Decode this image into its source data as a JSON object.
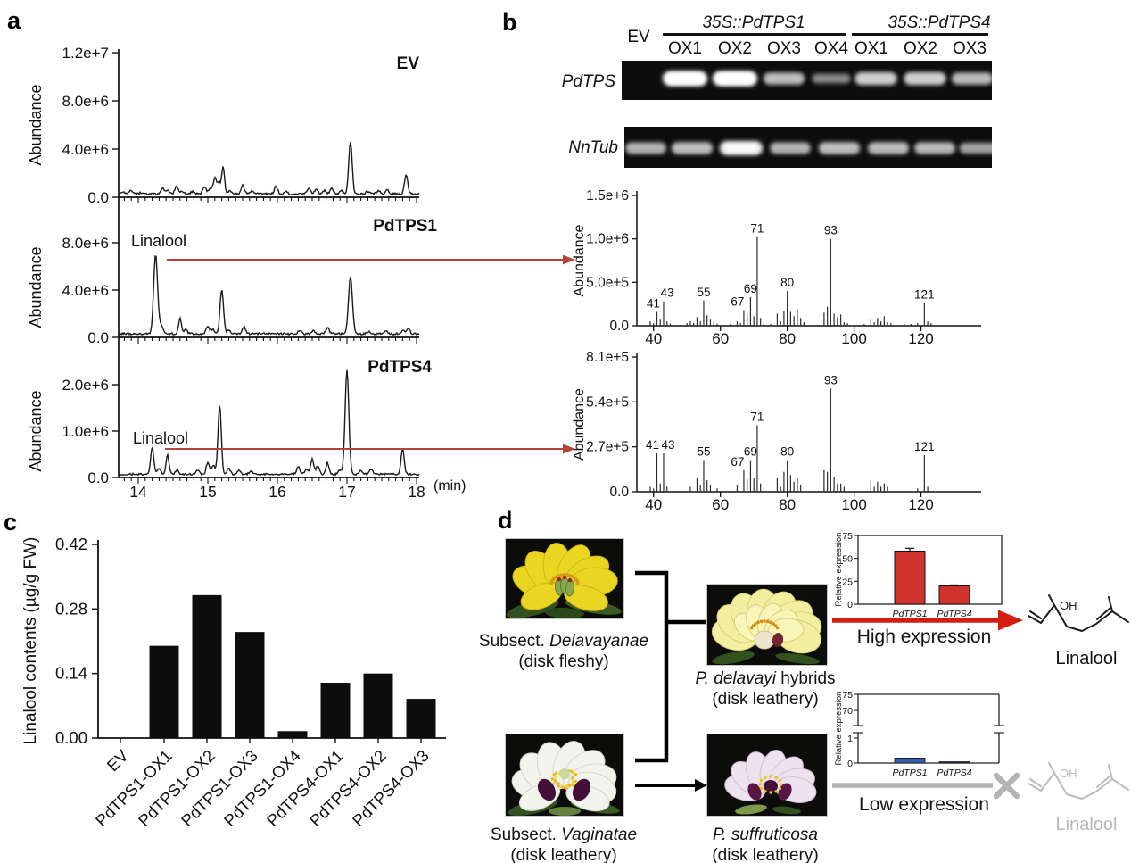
{
  "figure": {
    "panel_labels": {
      "a": "a",
      "b": "b",
      "c": "c",
      "d": "d"
    }
  },
  "colors": {
    "accent_red": "#d21d10",
    "muted_red": "#b5443a",
    "gray": "#b4b4b4",
    "bar_red": "#cf332a",
    "bar_blue": "#3a5fa8",
    "ink": "#111111"
  },
  "panel_b": {
    "ev": "EV",
    "groups": [
      {
        "label": "35S::PdTPS1",
        "lanes": [
          "OX1",
          "OX2",
          "OX3",
          "OX4"
        ]
      },
      {
        "label": "35S::PdTPS4",
        "lanes": [
          "OX1",
          "OX2",
          "OX3"
        ]
      }
    ],
    "row_labels": [
      "PdTPS",
      "NnTub"
    ]
  },
  "charts": {
    "chromatograms": {
      "ylabel": "Abundance",
      "xlabel": "(min)",
      "xticks": [
        "14",
        "15",
        "16",
        "17",
        "18"
      ],
      "plots": [
        {
          "title": "EV",
          "yticks": [
            [
              0,
              "0.0"
            ],
            [
              4,
              "4.0e+6"
            ],
            [
              8,
              "8.0e+6"
            ],
            [
              12,
              "1.2e+7"
            ]
          ],
          "peaks": [
            [
              13.78,
              0.2
            ],
            [
              13.9,
              0.28
            ],
            [
              14.05,
              0.12
            ],
            [
              14.35,
              0.5
            ],
            [
              14.42,
              0.28
            ],
            [
              14.55,
              0.62
            ],
            [
              14.63,
              0.25
            ],
            [
              14.78,
              0.2
            ],
            [
              14.95,
              0.6
            ],
            [
              15.03,
              0.45
            ],
            [
              15.1,
              1.3
            ],
            [
              15.16,
              1.0
            ],
            [
              15.22,
              2.3,
              0.028
            ],
            [
              15.32,
              0.25
            ],
            [
              15.5,
              0.72
            ],
            [
              15.63,
              0.25
            ],
            [
              15.98,
              0.62
            ],
            [
              16.12,
              0.2
            ],
            [
              16.45,
              0.5
            ],
            [
              16.56,
              0.42
            ],
            [
              16.68,
              0.28
            ],
            [
              16.78,
              0.45
            ],
            [
              16.92,
              0.25
            ],
            [
              17.05,
              4.3,
              0.035
            ],
            [
              17.3,
              0.22
            ],
            [
              17.45,
              0.28
            ],
            [
              17.58,
              0.3
            ],
            [
              17.85,
              1.55,
              0.033
            ]
          ]
        },
        {
          "title": "PdTPS1",
          "peak_label": "Linalool",
          "yticks": [
            [
              0,
              "0.0"
            ],
            [
              4,
              "4.0e+6"
            ],
            [
              8,
              "8.0e+6"
            ]
          ],
          "peaks": [
            [
              14.25,
              6.7,
              0.04
            ],
            [
              14.33,
              0.7
            ],
            [
              14.6,
              1.3,
              0.03
            ],
            [
              14.68,
              0.4
            ],
            [
              15.0,
              0.65
            ],
            [
              15.07,
              0.4
            ],
            [
              15.2,
              3.7,
              0.035
            ],
            [
              15.3,
              0.3
            ],
            [
              15.52,
              0.55
            ],
            [
              16.32,
              0.3
            ],
            [
              16.52,
              0.28
            ],
            [
              16.72,
              0.5
            ],
            [
              17.05,
              4.8,
              0.04
            ],
            [
              17.32,
              0.18
            ],
            [
              17.56,
              0.22
            ],
            [
              17.8,
              0.28
            ],
            [
              17.88,
              0.5,
              0.03
            ]
          ]
        },
        {
          "title": "PdTPS4",
          "peak_label": "Linalool",
          "yticks": [
            [
              0,
              "0.0"
            ],
            [
              1,
              "1.0e+6"
            ],
            [
              2,
              "2.0e+6"
            ]
          ],
          "peaks": [
            [
              14.2,
              0.58,
              0.032
            ],
            [
              14.3,
              0.12
            ],
            [
              14.42,
              0.42,
              0.03
            ],
            [
              14.56,
              0.1
            ],
            [
              14.85,
              0.1
            ],
            [
              15.0,
              0.26
            ],
            [
              15.08,
              0.18
            ],
            [
              15.17,
              1.5,
              0.033
            ],
            [
              15.3,
              0.12
            ],
            [
              15.45,
              0.1
            ],
            [
              15.62,
              0.07
            ],
            [
              16.3,
              0.16
            ],
            [
              16.42,
              0.1
            ],
            [
              16.5,
              0.33
            ],
            [
              16.58,
              0.18
            ],
            [
              16.72,
              0.24
            ],
            [
              16.9,
              0.09
            ],
            [
              17.0,
              2.25,
              0.038
            ],
            [
              17.2,
              0.09
            ],
            [
              17.35,
              0.11
            ],
            [
              17.8,
              0.55,
              0.032
            ]
          ]
        }
      ]
    },
    "spectrum1": {
      "ylabel": "Abundance",
      "ymax": 15,
      "yticks": [
        [
          0,
          "0.0"
        ],
        [
          5,
          "5.0e+5"
        ],
        [
          10,
          "1.0e+6"
        ],
        [
          15,
          "1.5e+6"
        ]
      ],
      "xticks": [
        40,
        60,
        80,
        100,
        120
      ],
      "peaks": [
        [
          39,
          0.5
        ],
        [
          40,
          0.3
        ],
        [
          41,
          1.6
        ],
        [
          42,
          0.7
        ],
        [
          43,
          2.8
        ],
        [
          44,
          0.5
        ],
        [
          45,
          0.25
        ],
        [
          50,
          0.3
        ],
        [
          51,
          0.5
        ],
        [
          52,
          0.3
        ],
        [
          53,
          1.0
        ],
        [
          54,
          0.5
        ],
        [
          55,
          2.9
        ],
        [
          56,
          1.2
        ],
        [
          57,
          0.7
        ],
        [
          58,
          0.4
        ],
        [
          59,
          0.25
        ],
        [
          63,
          0.2
        ],
        [
          65,
          0.5
        ],
        [
          66,
          0.3
        ],
        [
          67,
          1.8
        ],
        [
          68,
          1.4
        ],
        [
          69,
          3.3
        ],
        [
          70,
          1.1
        ],
        [
          71,
          10.2
        ],
        [
          72,
          0.9
        ],
        [
          73,
          0.3
        ],
        [
          75,
          0.2
        ],
        [
          77,
          1.4
        ],
        [
          78,
          0.5
        ],
        [
          79,
          1.7
        ],
        [
          80,
          4.0
        ],
        [
          81,
          1.6
        ],
        [
          82,
          1.1
        ],
        [
          83,
          1.9
        ],
        [
          84,
          0.9
        ],
        [
          85,
          0.4
        ],
        [
          91,
          1.5
        ],
        [
          92,
          2.2
        ],
        [
          93,
          10.0
        ],
        [
          94,
          1.4
        ],
        [
          95,
          1.0
        ],
        [
          96,
          1.3
        ],
        [
          97,
          0.4
        ],
        [
          98,
          0.3
        ],
        [
          103,
          0.2
        ],
        [
          105,
          0.7
        ],
        [
          106,
          0.4
        ],
        [
          107,
          0.9
        ],
        [
          108,
          0.5
        ],
        [
          109,
          1.1
        ],
        [
          110,
          0.4
        ],
        [
          111,
          0.3
        ],
        [
          115,
          0.2
        ],
        [
          117,
          0.2
        ],
        [
          119,
          0.3
        ],
        [
          121,
          2.6
        ],
        [
          122,
          0.5
        ],
        [
          123,
          0.3
        ]
      ],
      "labels": [
        [
          41,
          -4
        ],
        [
          43,
          4
        ],
        [
          55,
          0
        ],
        [
          67,
          -7
        ],
        [
          69,
          0
        ],
        [
          71,
          0
        ],
        [
          80,
          0
        ],
        [
          93,
          0
        ],
        [
          121,
          0
        ]
      ]
    },
    "spectrum2": {
      "ylabel": "Abundance",
      "ymax": 8.1,
      "yticks": [
        [
          0,
          "0.0"
        ],
        [
          2.7,
          "2.7e+5"
        ],
        [
          5.4,
          "5.4e+5"
        ],
        [
          8.1,
          "8.1e+5"
        ]
      ],
      "xticks": [
        40,
        60,
        80,
        100,
        120
      ],
      "peaks": [
        [
          39,
          0.3
        ],
        [
          40,
          0.2
        ],
        [
          41,
          2.3
        ],
        [
          42,
          0.5
        ],
        [
          43,
          2.3
        ],
        [
          44,
          0.3
        ],
        [
          51,
          0.3
        ],
        [
          53,
          0.8
        ],
        [
          54,
          0.4
        ],
        [
          55,
          1.9
        ],
        [
          56,
          0.7
        ],
        [
          57,
          0.4
        ],
        [
          59,
          0.2
        ],
        [
          65,
          0.4
        ],
        [
          67,
          1.3
        ],
        [
          68,
          0.75
        ],
        [
          69,
          1.9
        ],
        [
          70,
          0.8
        ],
        [
          71,
          4.0
        ],
        [
          72,
          0.5
        ],
        [
          73,
          0.2
        ],
        [
          77,
          0.8
        ],
        [
          78,
          0.3
        ],
        [
          79,
          1.2
        ],
        [
          80,
          1.9
        ],
        [
          81,
          1.0
        ],
        [
          82,
          0.6
        ],
        [
          83,
          0.8
        ],
        [
          84,
          0.4
        ],
        [
          91,
          1.3
        ],
        [
          92,
          1.2
        ],
        [
          93,
          6.2
        ],
        [
          94,
          0.9
        ],
        [
          95,
          0.5
        ],
        [
          96,
          0.5
        ],
        [
          97,
          0.3
        ],
        [
          105,
          0.7
        ],
        [
          106,
          0.3
        ],
        [
          107,
          0.6
        ],
        [
          108,
          0.3
        ],
        [
          109,
          0.5
        ],
        [
          110,
          0.3
        ],
        [
          119,
          0.2
        ],
        [
          121,
          2.2
        ],
        [
          122,
          0.3
        ]
      ],
      "labels": [
        [
          41,
          -5
        ],
        [
          43,
          5
        ],
        [
          55,
          0
        ],
        [
          67,
          -7
        ],
        [
          69,
          0
        ],
        [
          71,
          0
        ],
        [
          80,
          0
        ],
        [
          93,
          0
        ],
        [
          121,
          0
        ]
      ]
    },
    "gel": {
      "rows": [
        [
          0,
          1,
          1,
          0.62,
          0.3,
          0.72,
          0.72,
          0.6
        ],
        [
          0.55,
          0.62,
          0.85,
          0.55,
          0.62,
          0.6,
          0.58,
          0.45
        ]
      ]
    },
    "linalool_bar": {
      "type": "bar",
      "ylabel": "Linalool contents (µg/g FW)",
      "yticks": [
        [
          0,
          "0.00"
        ],
        [
          0.14,
          "0.14"
        ],
        [
          0.28,
          "0.28"
        ],
        [
          0.42,
          "0.42"
        ]
      ],
      "categories": [
        "EV",
        "PdTPS1-OX1",
        "PdTPS1-OX2",
        "PdTPS1-OX3",
        "PdTPS1-OX4",
        "PdTPS4-OX1",
        "PdTPS4-OX2",
        "PdTPS4-OX3"
      ],
      "values": [
        0,
        0.2,
        0.31,
        0.23,
        0.015,
        0.12,
        0.14,
        0.085
      ]
    },
    "expr_high": {
      "ylabel": "Relative expression",
      "yticks": [
        0,
        25,
        50,
        75
      ],
      "categories": [
        "PdTPS1",
        "PdTPS4"
      ],
      "values": [
        58,
        20
      ],
      "errors": [
        3,
        1
      ],
      "bar_color": "#cf332a"
    },
    "expr_low": {
      "ylabel": "Relative expression",
      "yticks_upper": [
        70,
        75
      ],
      "yticks_lower": [
        0,
        1
      ],
      "categories": [
        "PdTPS1",
        "PdTPS4"
      ],
      "values": [
        0.2,
        0.05
      ],
      "bar_colors": [
        "#3a5fa8",
        "#23315f"
      ]
    }
  },
  "panel_d": {
    "flowers": [
      {
        "caption": {
          "pre": "Subsect. ",
          "it": "Delavayanae",
          "post": "",
          "sub": "(disk fleshy)"
        },
        "art": {
          "kind": "single_yellow",
          "petal": "#e9d522",
          "center": "#86a94d",
          "stamen": "#d79a1b"
        }
      },
      {
        "caption": {
          "pre": "",
          "it": "P. delavayi",
          "post": " hybrids",
          "sub": "(disk leathery)"
        },
        "art": {
          "kind": "double_yellow",
          "petal": "#f2efa0",
          "center": "#ece4cb",
          "blotch": "#74232a",
          "stamen": "#cf8f1d"
        }
      },
      {
        "caption": {
          "pre": "Subsect. ",
          "it": "Vaginatae",
          "post": "",
          "sub": "(disk leathery)"
        },
        "art": {
          "kind": "white_blotch",
          "petal": "#f3f3ee",
          "blotch": "#451038",
          "stamen": "#e3bd17",
          "center": "#ccd79e"
        }
      },
      {
        "caption": {
          "pre": "",
          "it": "P. suffruticosa",
          "post": "",
          "sub": "(disk leathery)"
        },
        "art": {
          "kind": "pink_blotch",
          "petal": "#eee2ef",
          "blotch": "#5a1547",
          "stamen": "#e6c01c",
          "center": "#42103a"
        }
      }
    ],
    "high_label": "High expression",
    "low_label": "Low expression",
    "linalool": "Linalool",
    "oh": "OH"
  }
}
